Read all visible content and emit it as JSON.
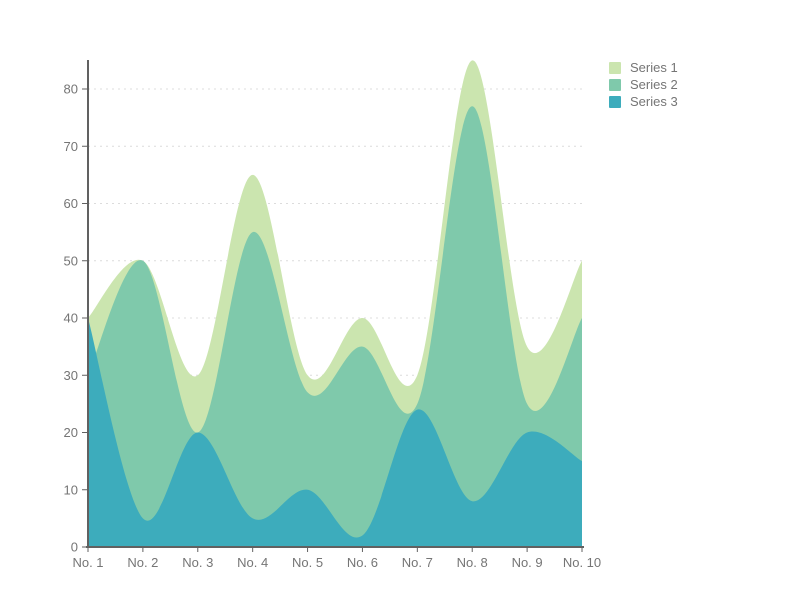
{
  "chart_data": {
    "type": "area",
    "title": "",
    "xlabel": "",
    "ylabel": "",
    "categories": [
      "No. 1",
      "No. 2",
      "No. 3",
      "No. 4",
      "No. 5",
      "No. 6",
      "No. 7",
      "No. 8",
      "No. 9",
      "No. 10"
    ],
    "series": [
      {
        "name": "Series 1",
        "color": "#cbe5af",
        "values": [
          40,
          50,
          30,
          65,
          30,
          40,
          30,
          85,
          35,
          50
        ]
      },
      {
        "name": "Series 2",
        "color": "#7fc9ab",
        "values": [
          30,
          50,
          20,
          55,
          27,
          35,
          25,
          77,
          25,
          40
        ]
      },
      {
        "name": "Series 3",
        "color": "#3dacbc",
        "values": [
          40,
          5,
          20,
          5,
          10,
          2,
          24,
          8,
          20,
          15
        ]
      }
    ],
    "yticks": [
      0,
      10,
      20,
      30,
      40,
      50,
      60,
      70,
      80
    ],
    "ylim": [
      0,
      85.5
    ],
    "stacked": false,
    "smooth": true,
    "grid": "horizontal-dashed",
    "legend_position": "top-right",
    "axis_color": "#616161",
    "grid_color": "#dcdcdc",
    "label_color": "#757575"
  }
}
